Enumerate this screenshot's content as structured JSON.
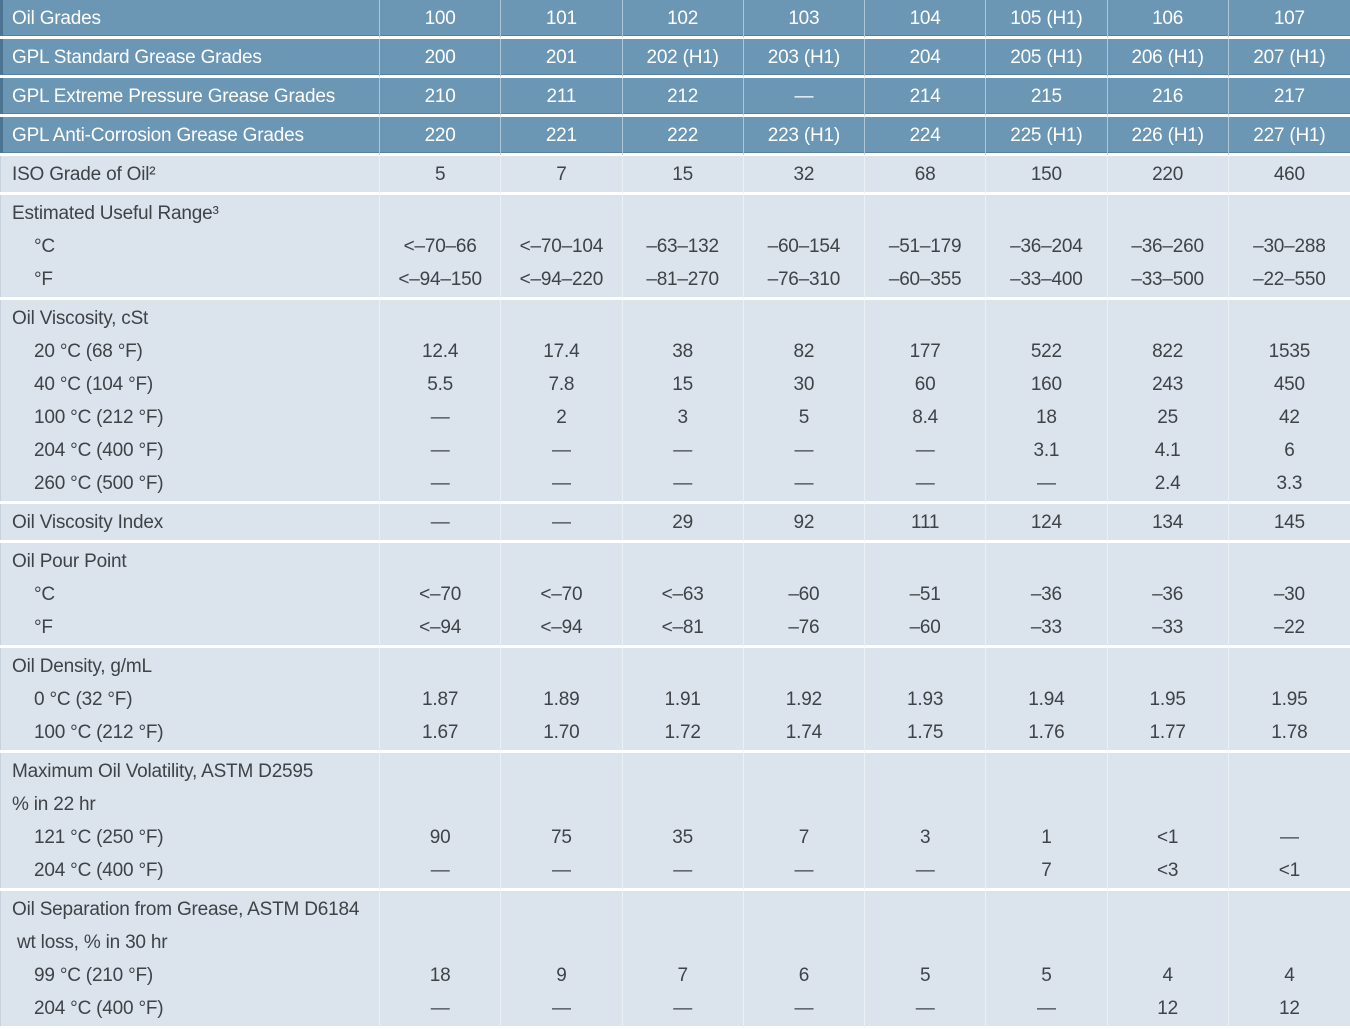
{
  "colors": {
    "header_bg": "#6b97b4",
    "row_bg": "#dbe3ed",
    "header_text": "#ffffff",
    "body_text": "#3e4347",
    "separator": "#ffffff",
    "header_edge": "#4c7492",
    "row_edge": "#c8d2dc"
  },
  "table": {
    "header_rows": [
      {
        "label": "Oil Grades",
        "values": [
          "100",
          "101",
          "102",
          "103",
          "104",
          "105 (H1)",
          "106",
          "107"
        ]
      },
      {
        "label": "GPL Standard Grease Grades",
        "values": [
          "200",
          "201",
          "202 (H1)",
          "203 (H1)",
          "204",
          "205 (H1)",
          "206 (H1)",
          "207 (H1)"
        ]
      },
      {
        "label": "GPL Extreme Pressure Grease Grades",
        "values": [
          "210",
          "211",
          "212",
          "—",
          "214",
          "215",
          "216",
          "217"
        ]
      },
      {
        "label": "GPL Anti-Corrosion Grease Grades",
        "values": [
          "220",
          "221",
          "222",
          "223 (H1)",
          "224",
          "225 (H1)",
          "226 (H1)",
          "227 (H1)"
        ]
      }
    ],
    "body_sections": [
      {
        "lines": [
          {
            "label": "ISO Grade of Oil²",
            "indent": 0,
            "values": [
              "5",
              "7",
              "15",
              "32",
              "68",
              "150",
              "220",
              "460"
            ]
          }
        ]
      },
      {
        "lines": [
          {
            "label": "Estimated Useful Range³",
            "indent": 0,
            "values": []
          },
          {
            "label": "°C",
            "indent": 1,
            "values": [
              "<–70–66",
              "<–70–104",
              "–63–132",
              "–60–154",
              "–51–179",
              "–36–204",
              "–36–260",
              "–30–288"
            ]
          },
          {
            "label": "°F",
            "indent": 1,
            "values": [
              "<–94–150",
              "<–94–220",
              "–81–270",
              "–76–310",
              "–60–355",
              "–33–400",
              "–33–500",
              "–22–550"
            ]
          }
        ]
      },
      {
        "lines": [
          {
            "label": "Oil Viscosity, cSt",
            "indent": 0,
            "values": []
          },
          {
            "label": "20 °C (68 °F)",
            "indent": 1,
            "values": [
              "12.4",
              "17.4",
              "38",
              "82",
              "177",
              "522",
              "822",
              "1535"
            ]
          },
          {
            "label": "40 °C (104 °F)",
            "indent": 1,
            "values": [
              "5.5",
              "7.8",
              "15",
              "30",
              "60",
              "160",
              "243",
              "450"
            ]
          },
          {
            "label": "100 °C (212 °F)",
            "indent": 1,
            "values": [
              "—",
              "2",
              "3",
              "5",
              "8.4",
              "18",
              "25",
              "42"
            ]
          },
          {
            "label": "204 °C (400 °F)",
            "indent": 1,
            "values": [
              "—",
              "—",
              "—",
              "—",
              "—",
              "3.1",
              "4.1",
              "6"
            ]
          },
          {
            "label": "260 °C (500 °F)",
            "indent": 1,
            "values": [
              "—",
              "—",
              "—",
              "—",
              "—",
              "—",
              "2.4",
              "3.3"
            ]
          }
        ]
      },
      {
        "lines": [
          {
            "label": "Oil Viscosity Index",
            "indent": 0,
            "values": [
              "—",
              "—",
              "29",
              "92",
              "111",
              "124",
              "134",
              "145"
            ]
          }
        ]
      },
      {
        "lines": [
          {
            "label": "Oil Pour Point",
            "indent": 0,
            "values": []
          },
          {
            "label": "°C",
            "indent": 1,
            "values": [
              "<–70",
              "<–70",
              "<–63",
              "–60",
              "–51",
              "–36",
              "–36",
              "–30"
            ]
          },
          {
            "label": "°F",
            "indent": 1,
            "values": [
              "<–94",
              "<–94",
              "<–81",
              "–76",
              "–60",
              "–33",
              "–33",
              "–22"
            ]
          }
        ]
      },
      {
        "lines": [
          {
            "label": "Oil Density, g/mL",
            "indent": 0,
            "values": []
          },
          {
            "label": "0 °C (32 °F)",
            "indent": 1,
            "values": [
              "1.87",
              "1.89",
              "1.91",
              "1.92",
              "1.93",
              "1.94",
              "1.95",
              "1.95"
            ]
          },
          {
            "label": "100 °C (212 °F)",
            "indent": 1,
            "values": [
              "1.67",
              "1.70",
              "1.72",
              "1.74",
              "1.75",
              "1.76",
              "1.77",
              "1.78"
            ]
          }
        ]
      },
      {
        "lines": [
          {
            "label": "Maximum Oil Volatility, ASTM D2595",
            "indent": 0,
            "values": []
          },
          {
            "label": "% in 22 hr",
            "indent": 0,
            "values": []
          },
          {
            "label": "121 °C (250 °F)",
            "indent": 1,
            "values": [
              "90",
              "75",
              "35",
              "7",
              "3",
              "1",
              "<1",
              "—"
            ]
          },
          {
            "label": "204 °C (400 °F)",
            "indent": 1,
            "values": [
              "—",
              "—",
              "—",
              "—",
              "—",
              "7",
              "<3",
              "<1"
            ]
          }
        ]
      },
      {
        "lines": [
          {
            "label": "Oil Separation from Grease, ASTM D6184",
            "indent": 0,
            "values": []
          },
          {
            "label": "wt loss, % in 30 hr",
            "indent": 2,
            "values": []
          },
          {
            "label": "99 °C (210 °F)",
            "indent": 1,
            "values": [
              "18",
              "9",
              "7",
              "6",
              "5",
              "5",
              "4",
              "4"
            ]
          },
          {
            "label": "204 °C (400 °F)",
            "indent": 1,
            "values": [
              "—",
              "—",
              "—",
              "—",
              "—",
              "—",
              "12",
              "12"
            ]
          }
        ]
      }
    ]
  }
}
